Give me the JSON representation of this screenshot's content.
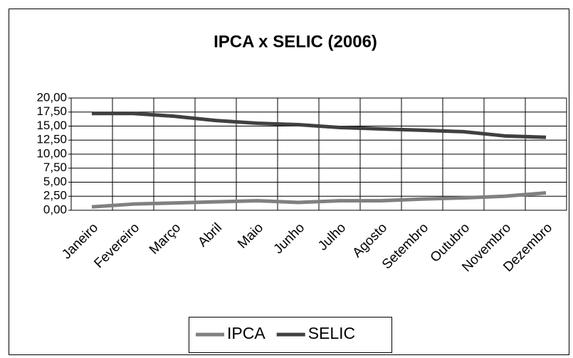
{
  "chart_data": {
    "type": "line",
    "title": "IPCA x SELIC (2006)",
    "categories": [
      "Janeiro",
      "Fevereiro",
      "Março",
      "Abril",
      "Maio",
      "Junho",
      "Julho",
      "Agosto",
      "Setembro",
      "Outubro",
      "Novembro",
      "Dezembro"
    ],
    "series": [
      {
        "name": "IPCA",
        "color": "#808080",
        "values": [
          0.6,
          1.1,
          1.3,
          1.5,
          1.7,
          1.4,
          1.7,
          1.7,
          2.0,
          2.2,
          2.5,
          3.1
        ]
      },
      {
        "name": "SELIC",
        "color": "#404040",
        "values": [
          17.25,
          17.25,
          16.75,
          16.0,
          15.5,
          15.25,
          14.75,
          14.5,
          14.25,
          14.0,
          13.25,
          13.0
        ]
      }
    ],
    "ylim": [
      0,
      20
    ],
    "yticks": [
      {
        "value": 0,
        "label": "0,00"
      },
      {
        "value": 2.5,
        "label": "2,50"
      },
      {
        "value": 5,
        "label": "5,00"
      },
      {
        "value": 7.5,
        "label": "7,50"
      },
      {
        "value": 10,
        "label": "10,00"
      },
      {
        "value": 12.5,
        "label": "12,50"
      },
      {
        "value": 15,
        "label": "15,00"
      },
      {
        "value": 17.5,
        "label": "17,50"
      },
      {
        "value": 20,
        "label": "20,00"
      }
    ],
    "grid": true,
    "legend": "bottom"
  }
}
